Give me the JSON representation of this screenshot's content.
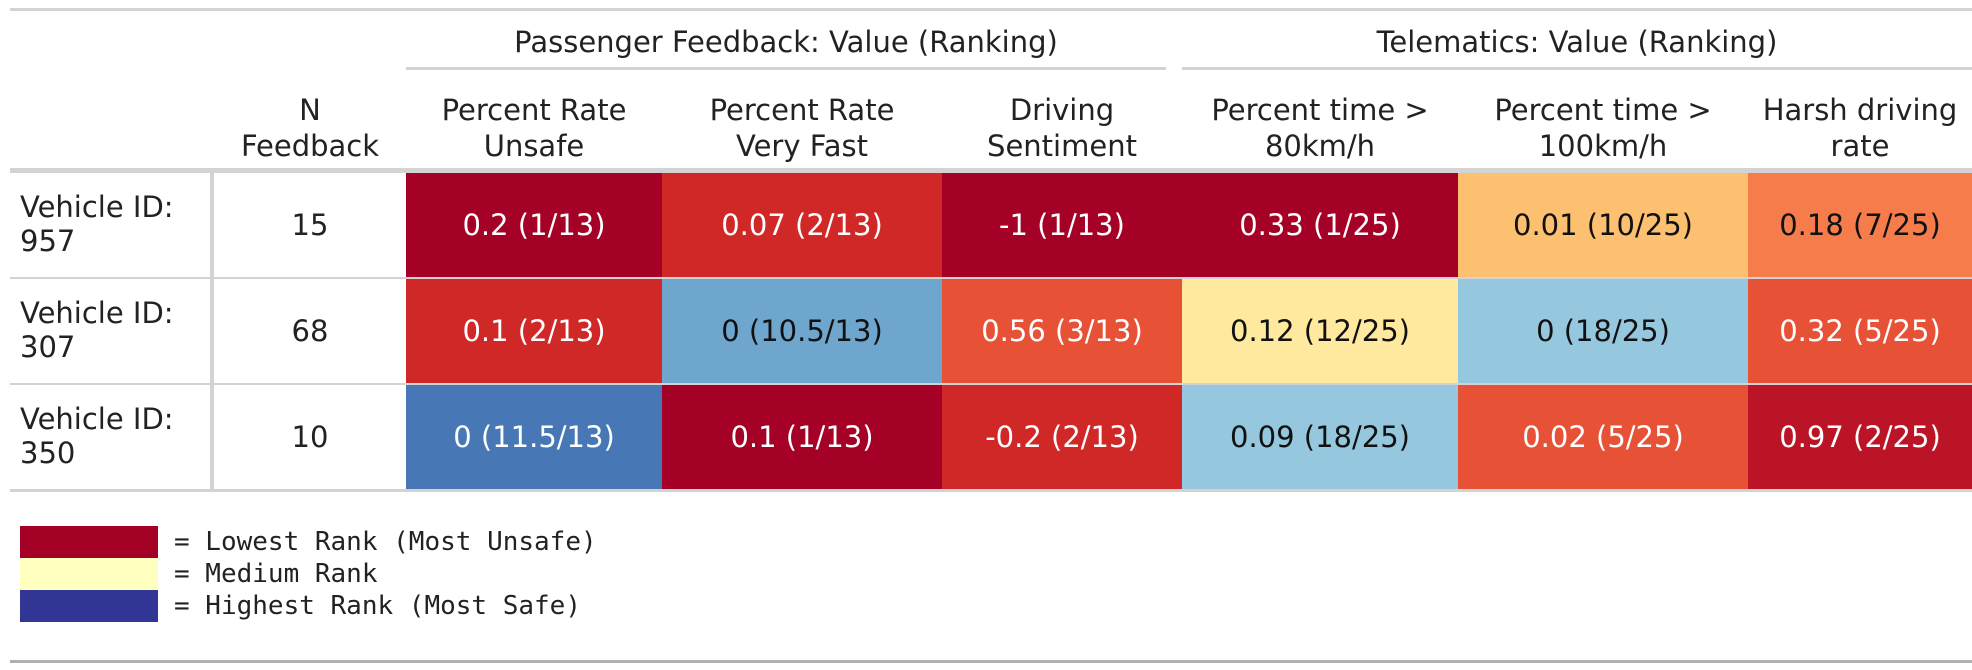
{
  "chart_data": {
    "type": "table",
    "spanners": [
      {
        "label": "Passenger Feedback: Value (Ranking)",
        "columns": [
          "pct_unsafe",
          "pct_very_fast",
          "sentiment"
        ]
      },
      {
        "label": "Telematics: Value (Ranking)",
        "columns": [
          "pct_80",
          "pct_100",
          "harsh"
        ]
      }
    ],
    "columns": [
      {
        "key": "n_feedback",
        "label": "N\nFeedback"
      },
      {
        "key": "pct_unsafe",
        "label": "Percent Rate\nUnsafe"
      },
      {
        "key": "pct_very_fast",
        "label": "Percent Rate\nVery Fast"
      },
      {
        "key": "sentiment",
        "label": "Driving\nSentiment"
      },
      {
        "key": "pct_80",
        "label": "Percent time >\n80km/h"
      },
      {
        "key": "pct_100",
        "label": "Percent time >\n100km/h"
      },
      {
        "key": "harsh",
        "label": "Harsh driving\nrate"
      }
    ],
    "rows": [
      {
        "label": "Vehicle ID:\n957",
        "n_feedback": "15",
        "cells": [
          {
            "text": "0.2 (1/13)",
            "rank": 1,
            "of": 13
          },
          {
            "text": "0.07 (2/13)",
            "rank": 2,
            "of": 13
          },
          {
            "text": "-1 (1/13)",
            "rank": 1,
            "of": 13
          },
          {
            "text": "0.33 (1/25)",
            "rank": 1,
            "of": 25
          },
          {
            "text": "0.01 (10/25)",
            "rank": 10,
            "of": 25
          },
          {
            "text": "0.18 (7/25)",
            "rank": 7,
            "of": 25
          }
        ]
      },
      {
        "label": "Vehicle ID:\n307",
        "n_feedback": "68",
        "cells": [
          {
            "text": "0.1 (2/13)",
            "rank": 2,
            "of": 13
          },
          {
            "text": "0 (10.5/13)",
            "rank": 10.5,
            "of": 13
          },
          {
            "text": "0.56 (3/13)",
            "rank": 3,
            "of": 13
          },
          {
            "text": "0.12 (12/25)",
            "rank": 12,
            "of": 25
          },
          {
            "text": "0 (18/25)",
            "rank": 18,
            "of": 25
          },
          {
            "text": "0.32 (5/25)",
            "rank": 5,
            "of": 25
          }
        ]
      },
      {
        "label": "Vehicle ID:\n350",
        "n_feedback": "10",
        "cells": [
          {
            "text": "0 (11.5/13)",
            "rank": 11.5,
            "of": 13
          },
          {
            "text": "0.1 (1/13)",
            "rank": 1,
            "of": 13
          },
          {
            "text": "-0.2 (2/13)",
            "rank": 2,
            "of": 13
          },
          {
            "text": "0.09 (18/25)",
            "rank": 18,
            "of": 25
          },
          {
            "text": "0.02 (5/25)",
            "rank": 5,
            "of": 25
          },
          {
            "text": "0.97 (2/25)",
            "rank": 2,
            "of": 25
          }
        ]
      }
    ],
    "legend": [
      {
        "color": "#a50026",
        "label": "= Lowest Rank (Most Unsafe)"
      },
      {
        "color": "#ffffbf",
        "label": "= Medium Rank"
      },
      {
        "color": "#313695",
        "label": "= Highest Rank (Most Safe)"
      }
    ],
    "colors": {
      "low": "#a50026",
      "mid": "#ffffbf",
      "high": "#313695"
    }
  }
}
